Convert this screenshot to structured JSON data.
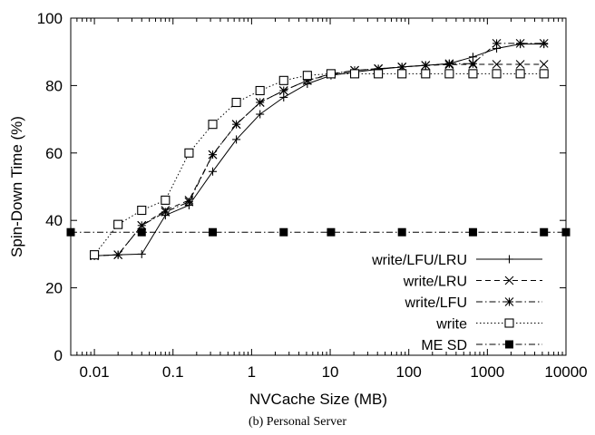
{
  "chart_data": {
    "type": "line",
    "title": "",
    "xlabel": "NVCache Size (MB)",
    "ylabel": "Spin-Down Time (%)",
    "x_scale": "log",
    "xlim": [
      0.005,
      10000
    ],
    "ylim": [
      0,
      100
    ],
    "x_ticks": [
      0.01,
      0.1,
      1,
      10,
      100,
      1000,
      10000
    ],
    "x_tick_labels": [
      "0.01",
      "0.1",
      "1",
      "10",
      "100",
      "1000",
      "10000"
    ],
    "y_ticks": [
      0,
      20,
      40,
      60,
      80,
      100
    ],
    "y_tick_labels": [
      "0",
      "20",
      "40",
      "60",
      "80",
      "100"
    ],
    "grid": false,
    "legend_position": "bottom-right",
    "caption": "(b)  Personal Server",
    "series": [
      {
        "name": "write/LFU/LRU",
        "marker": "plus",
        "dash": "solid",
        "x": [
          0.01,
          0.02,
          0.04,
          0.08,
          0.16,
          0.32,
          0.64,
          1.28,
          2.56,
          5.12,
          10.24,
          20.48,
          40.96,
          81.92,
          163.84,
          327.68,
          655.36,
          1310.72,
          2621.44,
          5242.88
        ],
        "y": [
          29.5,
          29.8,
          30.0,
          41.5,
          44.5,
          54.5,
          64.0,
          71.5,
          76.5,
          80.5,
          83.0,
          84.0,
          84.8,
          85.5,
          86.0,
          86.5,
          88.5,
          91.0,
          92.3,
          92.3
        ]
      },
      {
        "name": "write/LRU",
        "marker": "x",
        "dash": "dashed",
        "x": [
          0.01,
          0.02,
          0.04,
          0.08,
          0.16,
          0.32,
          0.64,
          1.28,
          2.56,
          5.12,
          10.24,
          20.48,
          40.96,
          81.92,
          163.84,
          327.68,
          655.36,
          1310.72,
          2621.44,
          5242.88
        ],
        "y": [
          29.5,
          29.8,
          38.5,
          43.0,
          46.0,
          59.5,
          68.5,
          75.0,
          78.5,
          81.5,
          83.3,
          84.5,
          85.0,
          85.5,
          86.0,
          86.2,
          86.3,
          86.3,
          86.3,
          86.3
        ]
      },
      {
        "name": "write/LFU",
        "marker": "star",
        "dash": "dash-dot",
        "x": [
          0.01,
          0.02,
          0.04,
          0.08,
          0.16,
          0.32,
          0.64,
          1.28,
          2.56,
          5.12,
          10.24,
          20.48,
          40.96,
          81.92,
          163.84,
          327.68,
          655.36,
          1310.72,
          2621.44,
          5242.88
        ],
        "y": [
          29.5,
          29.8,
          38.5,
          42.5,
          45.5,
          59.5,
          68.5,
          75.0,
          78.5,
          81.5,
          83.5,
          84.5,
          85.0,
          85.5,
          86.0,
          86.5,
          86.5,
          92.5,
          92.5,
          92.5
        ]
      },
      {
        "name": "write",
        "marker": "square",
        "dash": "dotted",
        "x": [
          0.01,
          0.02,
          0.04,
          0.08,
          0.16,
          0.32,
          0.64,
          1.28,
          2.56,
          5.12,
          10.24,
          20.48,
          40.96,
          81.92,
          163.84,
          327.68,
          655.36,
          1310.72,
          2621.44,
          5242.88
        ],
        "y": [
          29.8,
          38.8,
          43.0,
          46.0,
          60.0,
          68.5,
          75.0,
          78.5,
          81.5,
          83.0,
          83.5,
          83.5,
          83.5,
          83.5,
          83.5,
          83.5,
          83.5,
          83.5,
          83.5,
          83.5
        ]
      },
      {
        "name": "ME SD",
        "marker": "filled-square",
        "dash": "dash-dot",
        "x": [
          0.005,
          0.04,
          0.32,
          2.56,
          10.24,
          81.92,
          655.36,
          5242.88,
          10000
        ],
        "y": [
          36.5,
          36.5,
          36.5,
          36.5,
          36.5,
          36.5,
          36.5,
          36.5,
          36.5
        ]
      }
    ]
  }
}
